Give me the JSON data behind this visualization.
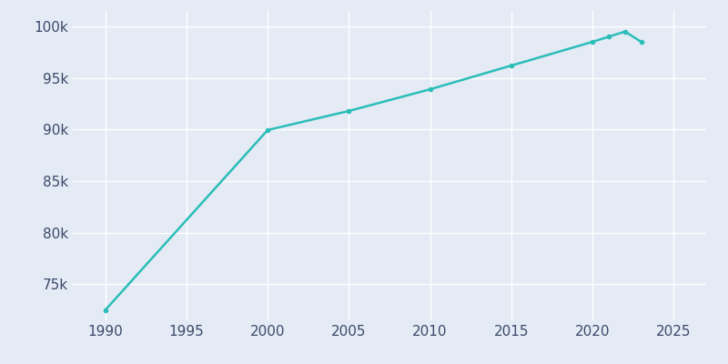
{
  "years": [
    1990,
    2000,
    2005,
    2010,
    2015,
    2020,
    2021,
    2022,
    2023
  ],
  "population": [
    72500,
    89950,
    91800,
    93900,
    96200,
    98500,
    99000,
    99500,
    98500
  ],
  "line_color": "#2BBDB8",
  "marker_color": "#2BBDB8",
  "background_color": "#E4EBF5",
  "grid_color": "#FFFFFF",
  "text_color": "#3C4A6B",
  "xlim": [
    1988,
    2027
  ],
  "ylim": [
    71500,
    101500
  ],
  "xticks": [
    1990,
    1995,
    2000,
    2005,
    2010,
    2015,
    2020,
    2025
  ],
  "yticks": [
    75000,
    80000,
    85000,
    90000,
    95000,
    100000
  ],
  "ytick_labels": [
    "75k",
    "80k",
    "85k",
    "90k",
    "95k",
    "100k"
  ],
  "linewidth": 1.8,
  "markersize": 4,
  "tick_labelsize": 11
}
